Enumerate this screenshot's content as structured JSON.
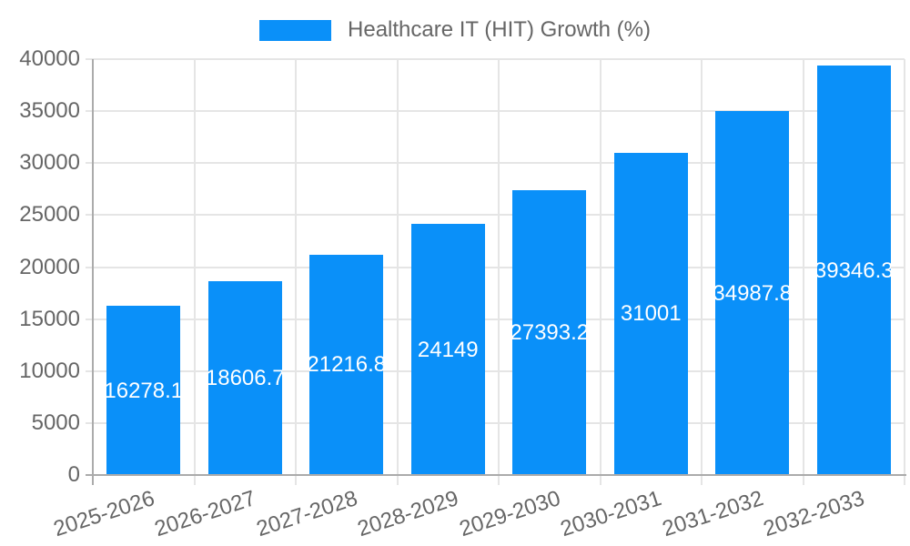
{
  "legend": {
    "items": [
      {
        "label": "Healthcare IT (HIT) Growth (%)"
      }
    ]
  },
  "colors": {
    "bar": "#0a90f9",
    "bar_label_text": "#ffffff",
    "axis_text": "#666666",
    "grid_line": "#e5e5e5",
    "axis_line": "#ababab",
    "background": "#ffffff"
  },
  "chart_data": {
    "type": "bar",
    "title": "",
    "legend_position": "top",
    "grid": true,
    "categories": [
      "2025-2026",
      "2026-2027",
      "2027-2028",
      "2028-2029",
      "2029-2030",
      "2030-2031",
      "2031-2032",
      "2032-2033"
    ],
    "series": [
      {
        "name": "Healthcare IT (HIT) Growth (%)",
        "values": [
          16278.1,
          18606.7,
          21216.8,
          24149,
          27393.2,
          31001,
          34987.8,
          39346.3
        ],
        "data_labels": [
          "16278.1",
          "18606.7",
          "21216.8",
          "24149",
          "27393.2",
          "31001",
          "34987.8",
          "39346.3"
        ]
      }
    ],
    "xlabel": "",
    "ylabel": "",
    "ylim": [
      0,
      40000
    ],
    "ytick_step": 5000,
    "ytick_labels": [
      "0",
      "5000",
      "10000",
      "15000",
      "20000",
      "25000",
      "30000",
      "35000",
      "40000"
    ]
  }
}
